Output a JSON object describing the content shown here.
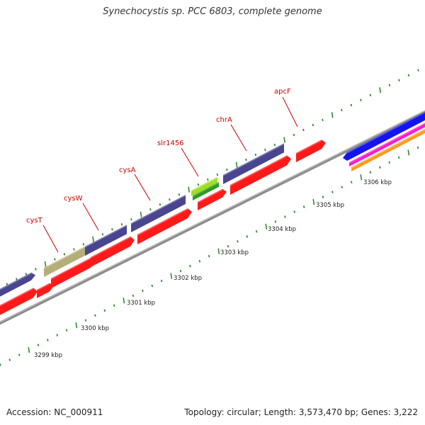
{
  "title": "Synechocystis sp. PCC 6803, complete genome",
  "footer": {
    "accession": "Accession: NC_000911",
    "summary": "Topology: circular; Length: 3,573,470 bp; Genes: 3,222"
  },
  "colors": {
    "backbone": "#8c8c8c",
    "feature_red": "#ff1a1a",
    "feature_blue_purple": "#4a4590",
    "feature_olive": "#b6ae78",
    "feature_green_light": "#9fe020",
    "feature_green_dark": "#2e9a22",
    "feature_blue": "#1414f0",
    "feature_magenta": "#ff19d0",
    "feature_orange": "#ff9a1a",
    "tick_green": "#2e8b2e",
    "label_red": "#cc0000"
  },
  "scale_labels": [
    {
      "kbp": 3299,
      "text": "3299 kbp"
    },
    {
      "kbp": 3300,
      "text": "3300 kbp"
    },
    {
      "kbp": 3301,
      "text": "3301 kbp"
    },
    {
      "kbp": 3302,
      "text": "3302 kbp"
    },
    {
      "kbp": 3303,
      "text": "3303 kbp"
    },
    {
      "kbp": 3304,
      "text": "3304 kbp"
    },
    {
      "kbp": 3305,
      "text": "3305 kbp"
    },
    {
      "kbp": 3306,
      "text": "3306 kbp"
    }
  ],
  "gene_labels": [
    {
      "name": "cysT"
    },
    {
      "name": "cysW"
    },
    {
      "name": "cysA"
    },
    {
      "name": "slr1456"
    },
    {
      "name": "chrA"
    },
    {
      "name": "apcF"
    }
  ]
}
